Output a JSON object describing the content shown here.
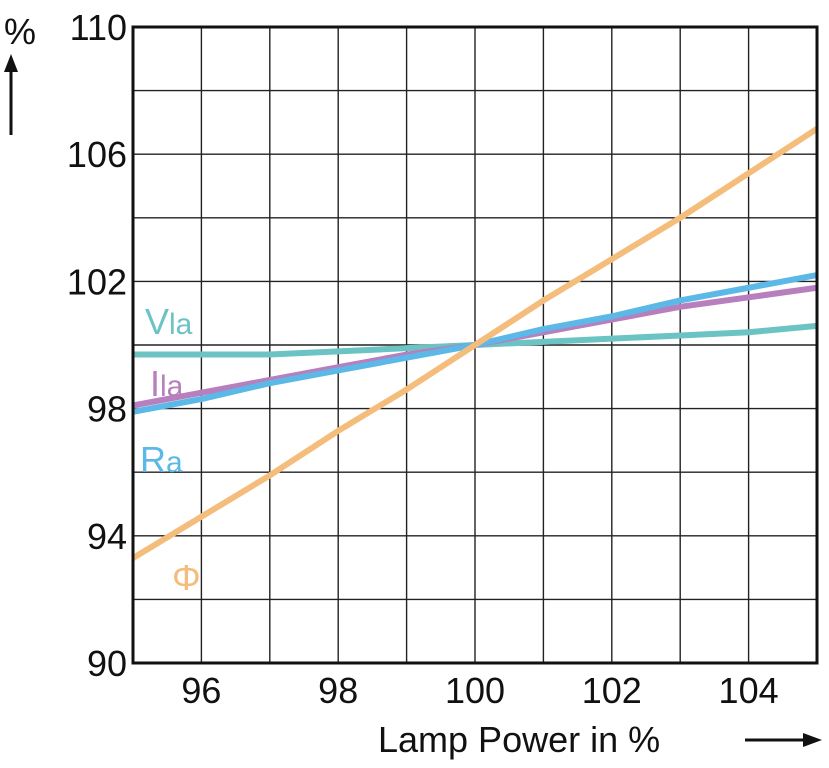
{
  "chart_data": {
    "type": "line",
    "title": "",
    "xlabel": "Lamp Power in %",
    "ylabel": "%",
    "xlim": [
      95,
      105
    ],
    "ylim": [
      90,
      110
    ],
    "x_ticks": [
      96,
      98,
      100,
      102,
      104
    ],
    "y_ticks": [
      90,
      94,
      98,
      102,
      106,
      110
    ],
    "x_tick_labels": [
      "96",
      "98",
      "100",
      "102",
      "104"
    ],
    "y_tick_labels": [
      "90",
      "94",
      "98",
      "102",
      "106",
      "110"
    ],
    "grid": true,
    "legend": "inline labels at left",
    "series": [
      {
        "name": "Vla",
        "label_main": "V",
        "label_sub": "la",
        "color": "#6cc3c3",
        "x": [
          95,
          96,
          97,
          98,
          99,
          100,
          101,
          102,
          103,
          104,
          105
        ],
        "y": [
          99.7,
          99.7,
          99.7,
          99.8,
          99.9,
          100.0,
          100.1,
          100.2,
          100.3,
          100.4,
          100.6
        ]
      },
      {
        "name": "Ila",
        "label_main": "I",
        "label_sub": "la",
        "color": "#b77fbd",
        "x": [
          95,
          96,
          97,
          98,
          99,
          100,
          101,
          102,
          103,
          104,
          105
        ],
        "y": [
          98.1,
          98.5,
          98.9,
          99.3,
          99.7,
          100.0,
          100.4,
          100.8,
          101.2,
          101.5,
          101.8
        ]
      },
      {
        "name": "Ra",
        "label_main": "R",
        "label_sub": "a",
        "color": "#5cb8e6",
        "x": [
          95,
          96,
          97,
          98,
          99,
          100,
          101,
          102,
          103,
          104,
          105
        ],
        "y": [
          97.9,
          98.3,
          98.8,
          99.2,
          99.6,
          100.0,
          100.5,
          100.9,
          101.4,
          101.8,
          102.2
        ]
      },
      {
        "name": "Φ",
        "label_main": "Φ",
        "label_sub": "",
        "color": "#f5bd7b",
        "x": [
          95,
          96,
          97,
          98,
          99,
          100,
          101,
          102,
          103,
          104,
          105
        ],
        "y": [
          93.3,
          94.6,
          95.9,
          97.3,
          98.6,
          100.0,
          101.4,
          102.7,
          104.0,
          105.4,
          106.8
        ]
      }
    ]
  }
}
